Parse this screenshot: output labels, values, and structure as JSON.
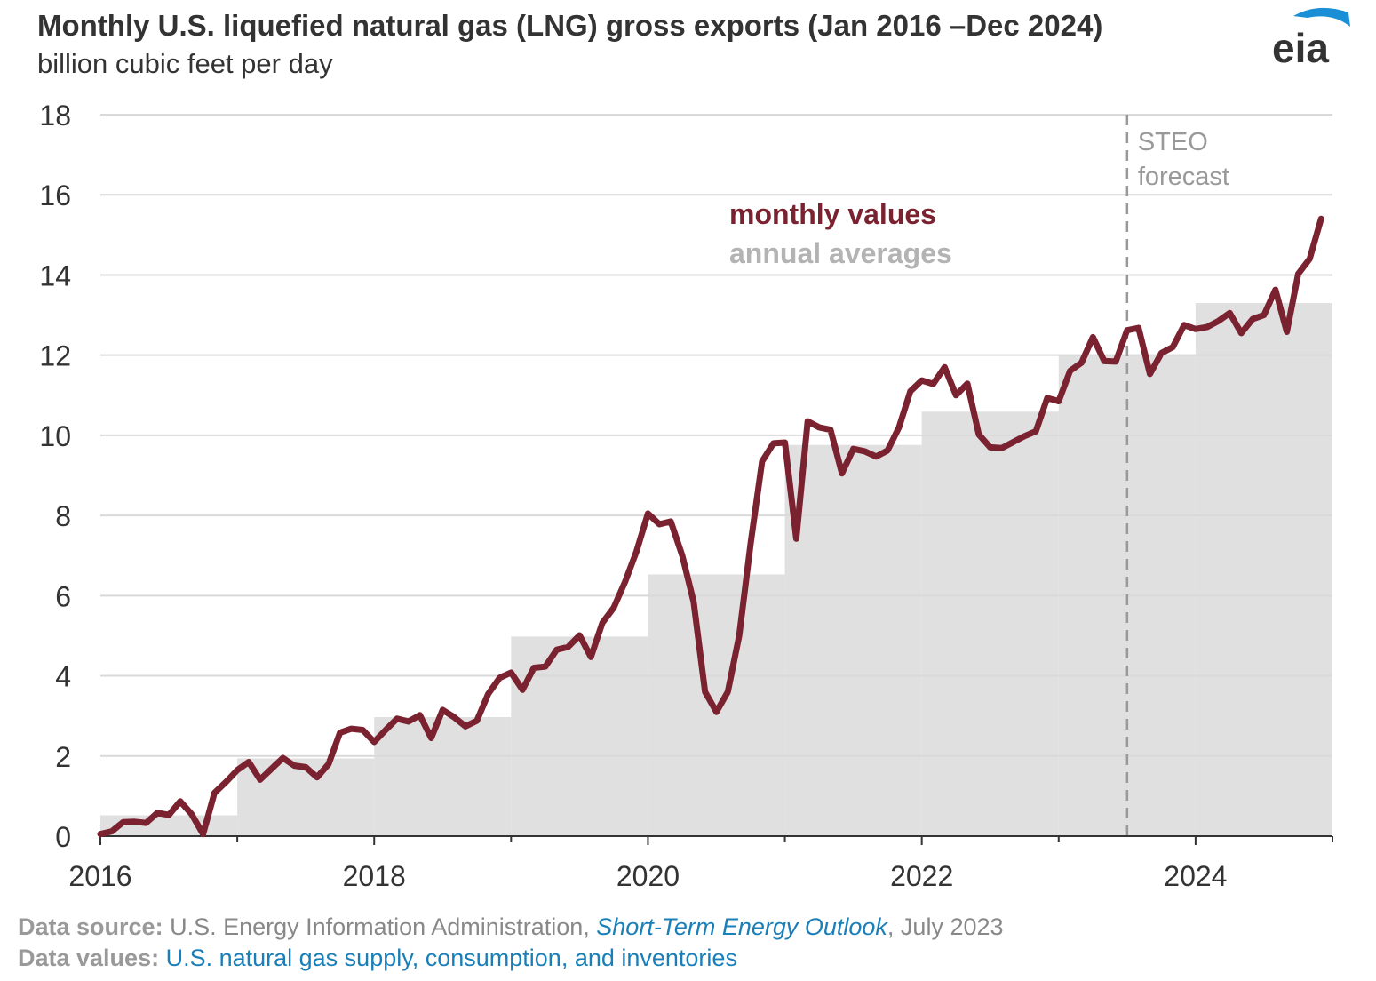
{
  "header": {
    "title": "Monthly U.S. liquefied natural gas (LNG) gross exports (Jan 2016  –Dec 2024)",
    "subtitle": "billion cubic feet per day",
    "logo_text": "eia"
  },
  "footer": {
    "source_label": "Data source:",
    "source_text": " U.S. Energy Information Administration, ",
    "source_link": "Short-Term Energy Outlook",
    "source_date": ", July 2023",
    "values_label": "Data values:",
    "values_link": " U.S. natural gas supply, consumption, and inventories"
  },
  "colors": {
    "monthly": "#7b2230",
    "annual": "#e0e0e0",
    "grid": "#d9d9d9",
    "forecast_line": "#999999",
    "logo_blue": "#1a8fd6"
  },
  "chart_data": {
    "type": "line",
    "title": "Monthly U.S. liquefied natural gas (LNG) gross exports (Jan 2016  –Dec 2024)",
    "ylabel": "billion cubic feet per day",
    "ylim": [
      0,
      18
    ],
    "yticks": [
      "0",
      "2",
      "4",
      "6",
      "8",
      "10",
      "12",
      "14",
      "16",
      "18"
    ],
    "xlim": [
      2016,
      2025
    ],
    "xticks": [
      {
        "value": 2016,
        "label": "2016"
      },
      {
        "value": 2018,
        "label": "2018"
      },
      {
        "value": 2020,
        "label": "2020"
      },
      {
        "value": 2022,
        "label": "2022"
      },
      {
        "value": 2024,
        "label": "2024"
      }
    ],
    "grid": true,
    "legend": [
      {
        "name": "monthly values",
        "color": "#7b2230"
      },
      {
        "name": "annual averages",
        "color": "#b3b3b3"
      }
    ],
    "forecast": {
      "start": "2023-07",
      "label_line1": "STEO",
      "label_line2": "forecast"
    },
    "annual_averages": [
      {
        "year": "2016",
        "value": 0.52
      },
      {
        "year": "2017",
        "value": 1.94
      },
      {
        "year": "2018",
        "value": 2.97
      },
      {
        "year": "2019",
        "value": 4.98
      },
      {
        "year": "2020",
        "value": 6.53
      },
      {
        "year": "2021",
        "value": 9.76
      },
      {
        "year": "2022",
        "value": 10.59
      },
      {
        "year": "2023",
        "value": 12.0
      },
      {
        "year": "2024",
        "value": 13.3
      }
    ],
    "series": [
      {
        "name": "monthly values",
        "start": "2016-01",
        "values": [
          0.05,
          0.12,
          0.35,
          0.36,
          0.33,
          0.58,
          0.53,
          0.87,
          0.55,
          0.05,
          1.08,
          1.35,
          1.65,
          1.85,
          1.41,
          1.68,
          1.95,
          1.76,
          1.72,
          1.47,
          1.8,
          2.58,
          2.68,
          2.65,
          2.35,
          2.65,
          2.93,
          2.86,
          3.02,
          2.45,
          3.15,
          2.97,
          2.74,
          2.88,
          3.55,
          3.95,
          4.08,
          3.65,
          4.2,
          4.23,
          4.65,
          4.72,
          5.01,
          4.47,
          5.32,
          5.7,
          6.35,
          7.11,
          8.05,
          7.78,
          7.85,
          7.0,
          5.85,
          3.6,
          3.1,
          3.6,
          5.01,
          7.3,
          9.35,
          9.8,
          9.82,
          7.42,
          10.35,
          10.2,
          10.14,
          9.05,
          9.66,
          9.6,
          9.47,
          9.62,
          10.2,
          11.1,
          11.37,
          11.28,
          11.7,
          11.0,
          11.29,
          10.02,
          9.7,
          9.68,
          9.83,
          9.98,
          10.1,
          10.93,
          10.85,
          11.61,
          11.81,
          12.45,
          11.85,
          11.84,
          12.62,
          12.68,
          11.53,
          12.05,
          12.2,
          12.75,
          12.65,
          12.7,
          12.85,
          13.05,
          12.55,
          12.9,
          13.0,
          13.63,
          12.58,
          14.03,
          14.4,
          15.4
        ]
      }
    ]
  }
}
